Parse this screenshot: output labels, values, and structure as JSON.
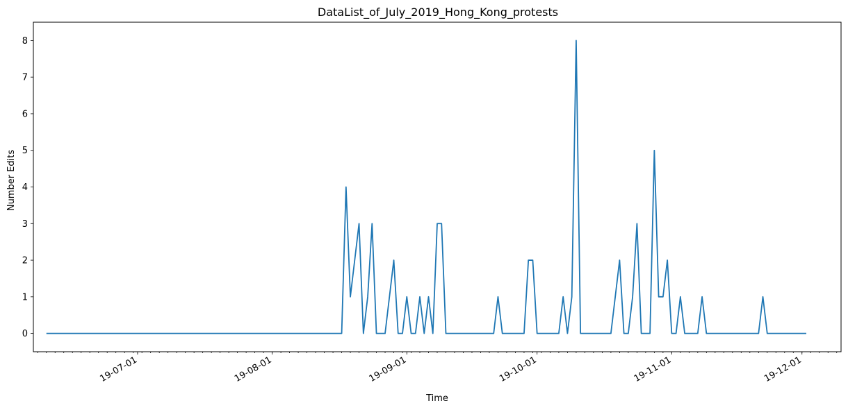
{
  "chart_data": {
    "type": "line",
    "title": "DataList_of_July_2019_Hong_Kong_protests",
    "xlabel": "Time",
    "ylabel": "Number Edits",
    "x_tick_labels": [
      "19-07-01",
      "19-08-01",
      "19-09-01",
      "19-10-01",
      "19-11-01",
      "19-12-01"
    ],
    "x_tick_dates": [
      "2019-07-01",
      "2019-08-01",
      "2019-09-01",
      "2019-10-01",
      "2019-11-01",
      "2019-12-01"
    ],
    "y_ticks": [
      0,
      1,
      2,
      3,
      4,
      5,
      6,
      7,
      8
    ],
    "xlim": [
      "2019-06-07",
      "2019-12-10"
    ],
    "ylim": [
      -0.5,
      8.5
    ],
    "grid": false,
    "color": "#1f77b4",
    "series": [
      {
        "points": [
          [
            "2019-06-10",
            0
          ],
          [
            "2019-08-17",
            0
          ],
          [
            "2019-08-18",
            4
          ],
          [
            "2019-08-19",
            1
          ],
          [
            "2019-08-21",
            3
          ],
          [
            "2019-08-22",
            0
          ],
          [
            "2019-08-23",
            1
          ],
          [
            "2019-08-24",
            3
          ],
          [
            "2019-08-25",
            0
          ],
          [
            "2019-08-27",
            0
          ],
          [
            "2019-08-29",
            2
          ],
          [
            "2019-08-30",
            0
          ],
          [
            "2019-08-31",
            0
          ],
          [
            "2019-09-01",
            1
          ],
          [
            "2019-09-02",
            0
          ],
          [
            "2019-09-03",
            0
          ],
          [
            "2019-09-04",
            1
          ],
          [
            "2019-09-05",
            0
          ],
          [
            "2019-09-06",
            1
          ],
          [
            "2019-09-07",
            0
          ],
          [
            "2019-09-08",
            3
          ],
          [
            "2019-09-09",
            3
          ],
          [
            "2019-09-10",
            0
          ],
          [
            "2019-09-21",
            0
          ],
          [
            "2019-09-22",
            1
          ],
          [
            "2019-09-23",
            0
          ],
          [
            "2019-09-28",
            0
          ],
          [
            "2019-09-29",
            2
          ],
          [
            "2019-09-30",
            2
          ],
          [
            "2019-10-01",
            0
          ],
          [
            "2019-10-06",
            0
          ],
          [
            "2019-10-07",
            1
          ],
          [
            "2019-10-08",
            0
          ],
          [
            "2019-10-09",
            1
          ],
          [
            "2019-10-10",
            8
          ],
          [
            "2019-10-11",
            0
          ],
          [
            "2019-10-18",
            0
          ],
          [
            "2019-10-20",
            2
          ],
          [
            "2019-10-21",
            0
          ],
          [
            "2019-10-22",
            0
          ],
          [
            "2019-10-23",
            1
          ],
          [
            "2019-10-24",
            3
          ],
          [
            "2019-10-25",
            0
          ],
          [
            "2019-10-27",
            0
          ],
          [
            "2019-10-28",
            5
          ],
          [
            "2019-10-29",
            1
          ],
          [
            "2019-10-30",
            1
          ],
          [
            "2019-10-31",
            2
          ],
          [
            "2019-11-01",
            0
          ],
          [
            "2019-11-02",
            0
          ],
          [
            "2019-11-03",
            1
          ],
          [
            "2019-11-04",
            0
          ],
          [
            "2019-11-07",
            0
          ],
          [
            "2019-11-08",
            1
          ],
          [
            "2019-11-09",
            0
          ],
          [
            "2019-11-21",
            0
          ],
          [
            "2019-11-22",
            1
          ],
          [
            "2019-11-23",
            0
          ],
          [
            "2019-12-02",
            0
          ]
        ]
      }
    ]
  }
}
